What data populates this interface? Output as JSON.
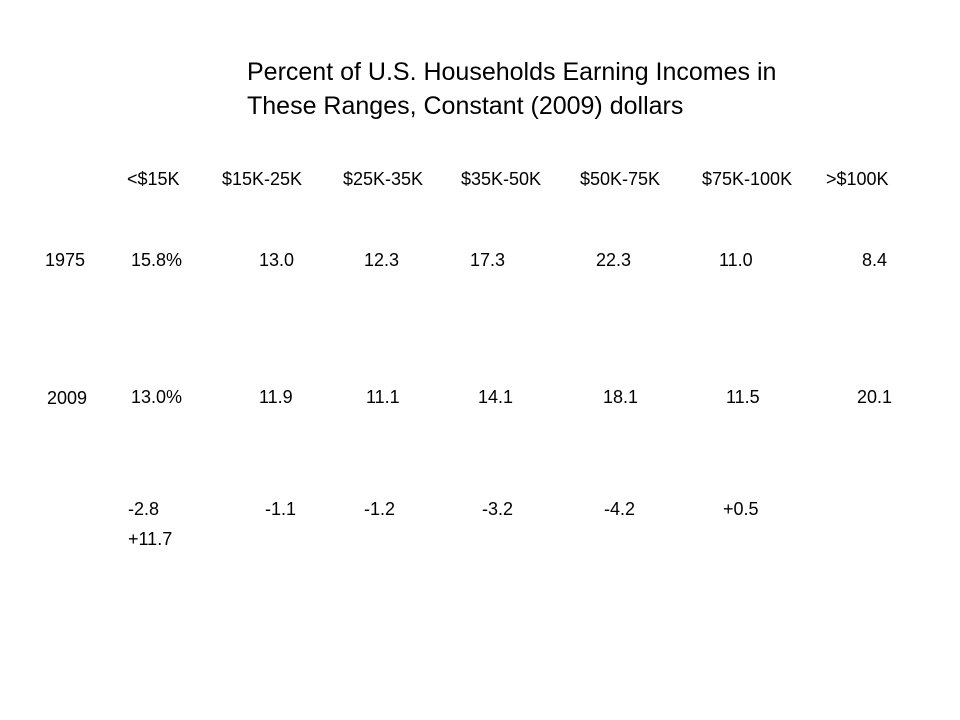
{
  "slide": {
    "title_line1": "Percent of U.S. Households Earning Incomes in",
    "title_line2": "These Ranges, Constant (2009) dollars"
  },
  "table": {
    "headers": [
      "<$15K",
      "$15K-25K",
      "$25K-35K",
      "$35K-50K",
      "$50K-75K",
      "$75K-100K",
      ">$100K"
    ],
    "rows": [
      {
        "label": "1975",
        "cells": [
          "15.8%",
          "13.0",
          "12.3",
          "17.3",
          "22.3",
          "11.0",
          "8.4"
        ]
      },
      {
        "label": "2009",
        "cells": [
          "13.0%",
          "11.9",
          "11.1",
          "14.1",
          "18.1",
          "11.5",
          "20.1"
        ]
      }
    ],
    "changes": [
      "-2.8",
      "-1.1",
      "-1.2",
      "-3.2",
      "-4.2",
      "+0.5",
      "+11.7"
    ]
  }
}
